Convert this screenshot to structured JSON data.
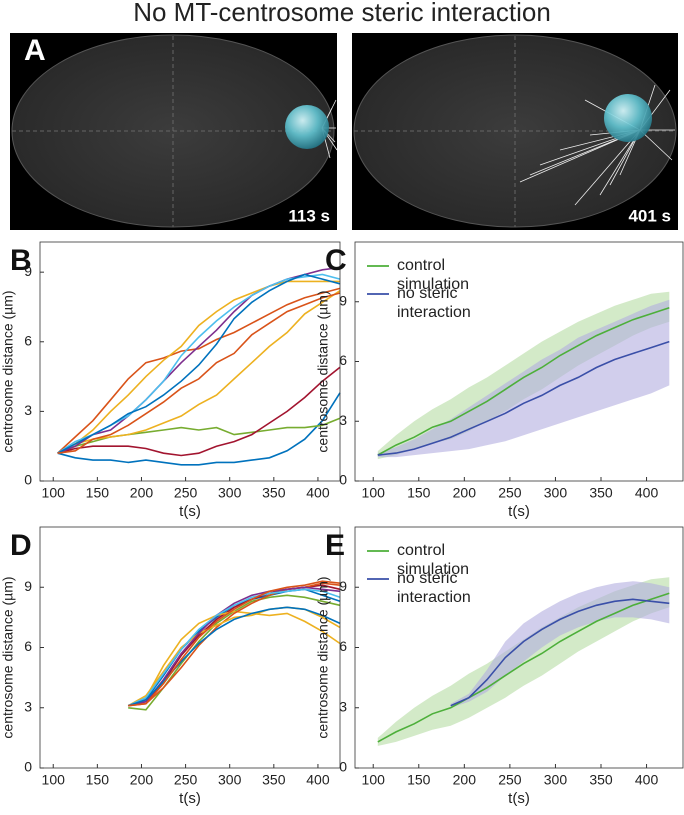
{
  "title": "No MT-centrosome steric interaction",
  "images": [
    {
      "panel_label": "A",
      "time_label": "113 s"
    },
    {
      "time_label": "401 s"
    }
  ],
  "chart_data": [
    {
      "type": "line",
      "panel_label": "B",
      "xlabel": "t(s)",
      "ylabel": "centrosome distance (µm)",
      "xlim": [
        85,
        425
      ],
      "ylim": [
        0,
        10.3
      ],
      "xticks": [
        100,
        150,
        200,
        250,
        300,
        350,
        400
      ],
      "yticks": [
        0,
        3,
        6,
        9
      ],
      "x": [
        105,
        125,
        145,
        165,
        185,
        205,
        225,
        245,
        265,
        285,
        305,
        325,
        345,
        365,
        385,
        405,
        425
      ],
      "series": [
        {
          "color": "#0072BD",
          "values": [
            1.2,
            1.0,
            0.9,
            0.9,
            0.8,
            0.9,
            0.8,
            0.7,
            0.7,
            0.8,
            0.8,
            0.9,
            1.0,
            1.3,
            1.8,
            2.6,
            3.8
          ]
        },
        {
          "color": "#77AC30",
          "values": [
            1.2,
            1.5,
            1.7,
            1.9,
            2.0,
            2.1,
            2.2,
            2.3,
            2.2,
            2.3,
            2.0,
            2.1,
            2.2,
            2.3,
            2.3,
            2.4,
            2.7
          ]
        },
        {
          "color": "#A2142F",
          "values": [
            1.2,
            1.4,
            1.5,
            1.5,
            1.5,
            1.4,
            1.2,
            1.1,
            1.2,
            1.5,
            1.7,
            2.0,
            2.5,
            3.0,
            3.6,
            4.3,
            4.9
          ]
        },
        {
          "color": "#EDB120",
          "values": [
            1.2,
            1.6,
            1.8,
            1.9,
            2.0,
            2.2,
            2.5,
            2.8,
            3.3,
            3.7,
            4.4,
            5.1,
            5.8,
            6.4,
            7.2,
            7.7,
            8.2
          ]
        },
        {
          "color": "#D95319",
          "values": [
            1.2,
            1.9,
            2.6,
            3.5,
            4.4,
            5.1,
            5.3,
            5.6,
            5.7,
            6.1,
            6.4,
            6.8,
            7.2,
            7.6,
            7.9,
            8.1,
            8.3
          ]
        },
        {
          "color": "#EDB120",
          "values": [
            1.2,
            1.6,
            2.2,
            3.0,
            3.7,
            4.5,
            5.2,
            5.8,
            6.7,
            7.3,
            7.8,
            8.1,
            8.4,
            8.6,
            8.6,
            8.6,
            8.6
          ]
        },
        {
          "color": "#7E2F8E",
          "values": [
            1.2,
            1.5,
            2.0,
            2.2,
            2.8,
            3.5,
            4.3,
            5.1,
            5.8,
            6.5,
            7.3,
            8.0,
            8.4,
            8.7,
            8.9,
            9.1,
            9.2
          ]
        },
        {
          "color": "#4DBEEE",
          "values": [
            1.2,
            1.7,
            2.0,
            2.4,
            2.8,
            3.5,
            4.3,
            5.4,
            6.2,
            6.9,
            7.5,
            8.0,
            8.4,
            8.7,
            8.8,
            8.9,
            8.7
          ]
        },
        {
          "color": "#0072BD",
          "values": [
            1.2,
            1.6,
            2.0,
            2.4,
            2.9,
            3.2,
            3.7,
            4.3,
            5.0,
            5.9,
            7.0,
            7.7,
            8.2,
            8.6,
            8.9,
            8.7,
            8.5
          ]
        },
        {
          "color": "#D95319",
          "values": [
            1.2,
            1.3,
            1.8,
            2.0,
            2.4,
            2.9,
            3.4,
            4.0,
            4.4,
            5.1,
            5.5,
            6.3,
            6.8,
            7.3,
            7.6,
            7.9,
            8.1
          ]
        }
      ]
    },
    {
      "type": "band-line",
      "panel_label": "C",
      "xlabel": "t(s)",
      "ylabel": "centrosome distance (µm)",
      "legend": "upper-left",
      "xlim": [
        80,
        440
      ],
      "ylim": [
        0,
        12
      ],
      "xticks": [
        100,
        150,
        200,
        250,
        300,
        350,
        400
      ],
      "yticks": [
        0,
        3,
        6,
        9
      ],
      "x": [
        105,
        125,
        145,
        165,
        185,
        205,
        225,
        245,
        265,
        285,
        305,
        325,
        345,
        365,
        385,
        405,
        425
      ],
      "series": [
        {
          "name": "control simulation",
          "color": "#4daf3a",
          "band_color": "#b6dca4",
          "values": [
            1.3,
            1.8,
            2.2,
            2.7,
            3.0,
            3.5,
            4.0,
            4.6,
            5.2,
            5.7,
            6.3,
            6.8,
            7.3,
            7.7,
            8.1,
            8.4,
            8.7
          ],
          "lower": [
            1.1,
            1.3,
            1.6,
            1.9,
            2.1,
            2.5,
            3.0,
            3.5,
            4.1,
            4.6,
            5.2,
            5.8,
            6.3,
            6.8,
            7.3,
            7.7,
            8.0
          ],
          "upper": [
            1.5,
            2.3,
            3.0,
            3.6,
            4.1,
            4.7,
            5.2,
            5.8,
            6.4,
            7.0,
            7.5,
            8.0,
            8.4,
            8.8,
            9.1,
            9.4,
            9.5
          ]
        },
        {
          "name": "no steric interaction",
          "color": "#3a4fa8",
          "band_color": "#b3aee0",
          "values": [
            1.3,
            1.4,
            1.6,
            1.9,
            2.2,
            2.6,
            3.0,
            3.4,
            3.9,
            4.3,
            4.8,
            5.2,
            5.7,
            6.1,
            6.4,
            6.7,
            7.0
          ],
          "lower": [
            1.2,
            1.2,
            1.3,
            1.4,
            1.5,
            1.6,
            1.8,
            2.0,
            2.3,
            2.6,
            2.9,
            3.2,
            3.5,
            3.8,
            4.1,
            4.4,
            4.8
          ],
          "upper": [
            1.4,
            1.7,
            2.1,
            2.6,
            3.1,
            3.7,
            4.3,
            4.9,
            5.5,
            6.1,
            6.6,
            7.2,
            7.6,
            8.0,
            8.4,
            8.8,
            9.1
          ]
        }
      ]
    },
    {
      "type": "line",
      "panel_label": "D",
      "xlabel": "t(s)",
      "ylabel": "centrosome distance (µm)",
      "xlim": [
        85,
        425
      ],
      "ylim": [
        0,
        12
      ],
      "xticks": [
        100,
        150,
        200,
        250,
        300,
        350,
        400
      ],
      "yticks": [
        0,
        3,
        6,
        9
      ],
      "x": [
        105,
        125,
        145,
        165,
        185,
        205,
        225,
        245,
        265,
        285,
        305,
        325,
        345,
        365,
        385,
        405,
        425
      ],
      "series": [
        {
          "color": "#0072BD",
          "values": [
            null,
            null,
            null,
            null,
            3.1,
            3.4,
            4.6,
            5.9,
            6.8,
            7.5,
            8.1,
            8.4,
            8.6,
            8.8,
            8.9,
            8.6,
            8.3
          ]
        },
        {
          "color": "#77AC30",
          "values": [
            null,
            null,
            null,
            null,
            3.0,
            2.9,
            4.0,
            5.2,
            6.3,
            7.2,
            7.8,
            8.3,
            8.5,
            8.6,
            8.5,
            8.3,
            8.1
          ]
        },
        {
          "color": "#A2142F",
          "values": [
            null,
            null,
            null,
            null,
            3.1,
            3.3,
            4.3,
            5.6,
            6.6,
            7.4,
            8.0,
            8.4,
            8.7,
            8.9,
            9.0,
            9.1,
            8.9
          ]
        },
        {
          "color": "#EDB120",
          "values": [
            null,
            null,
            null,
            null,
            3.1,
            3.5,
            5.1,
            6.4,
            7.2,
            7.6,
            7.8,
            7.7,
            7.6,
            7.7,
            7.3,
            6.8,
            6.2
          ]
        },
        {
          "color": "#D95319",
          "values": [
            null,
            null,
            null,
            null,
            3.1,
            3.2,
            4.0,
            5.0,
            6.1,
            7.0,
            7.7,
            8.2,
            8.6,
            8.9,
            9.0,
            9.2,
            9.1
          ]
        },
        {
          "color": "#EDB120",
          "values": [
            null,
            null,
            null,
            null,
            3.1,
            3.6,
            4.8,
            6.0,
            6.7,
            7.1,
            7.5,
            7.6,
            7.9,
            8.0,
            7.9,
            7.5,
            7.0
          ]
        },
        {
          "color": "#7E2F8E",
          "values": [
            null,
            null,
            null,
            null,
            3.1,
            3.3,
            4.4,
            5.7,
            6.7,
            7.6,
            8.2,
            8.6,
            8.8,
            8.9,
            9.0,
            8.9,
            8.8
          ]
        },
        {
          "color": "#4DBEEE",
          "values": [
            null,
            null,
            null,
            null,
            3.1,
            3.5,
            4.7,
            5.9,
            6.9,
            7.6,
            8.1,
            8.5,
            8.7,
            8.8,
            8.9,
            8.8,
            8.5
          ]
        },
        {
          "color": "#0072BD",
          "values": [
            null,
            null,
            null,
            null,
            3.1,
            3.4,
            4.3,
            5.3,
            6.2,
            6.9,
            7.4,
            7.7,
            7.9,
            8.0,
            7.9,
            7.6,
            7.2
          ]
        },
        {
          "color": "#D95319",
          "values": [
            null,
            null,
            null,
            null,
            3.1,
            3.2,
            4.2,
            5.4,
            6.5,
            7.3,
            7.9,
            8.4,
            8.8,
            9.0,
            9.1,
            9.3,
            9.2
          ]
        }
      ]
    },
    {
      "type": "band-line",
      "panel_label": "E",
      "xlabel": "t(s)",
      "ylabel": "centrosome distance (µm)",
      "legend": "upper-left",
      "xlim": [
        80,
        440
      ],
      "ylim": [
        0,
        12
      ],
      "xticks": [
        100,
        150,
        200,
        250,
        300,
        350,
        400
      ],
      "yticks": [
        0,
        3,
        6,
        9
      ],
      "x": [
        105,
        125,
        145,
        165,
        185,
        205,
        225,
        245,
        265,
        285,
        305,
        325,
        345,
        365,
        385,
        405,
        425
      ],
      "series": [
        {
          "name": "control simulation",
          "color": "#4daf3a",
          "band_color": "#b6dca4",
          "values": [
            1.3,
            1.8,
            2.2,
            2.7,
            3.0,
            3.5,
            4.0,
            4.6,
            5.2,
            5.7,
            6.3,
            6.8,
            7.3,
            7.7,
            8.1,
            8.4,
            8.7
          ],
          "lower": [
            1.1,
            1.3,
            1.6,
            1.9,
            2.1,
            2.5,
            3.0,
            3.5,
            4.1,
            4.6,
            5.2,
            5.8,
            6.3,
            6.8,
            7.3,
            7.7,
            8.0
          ],
          "upper": [
            1.5,
            2.3,
            3.0,
            3.6,
            4.1,
            4.7,
            5.2,
            5.8,
            6.4,
            7.0,
            7.5,
            8.0,
            8.4,
            8.8,
            9.1,
            9.4,
            9.5
          ]
        },
        {
          "name": "no steric interaction",
          "color": "#3a4fa8",
          "band_color": "#b3aee0",
          "values": [
            null,
            null,
            null,
            null,
            3.1,
            3.5,
            4.4,
            5.5,
            6.3,
            6.9,
            7.4,
            7.8,
            8.1,
            8.3,
            8.4,
            8.3,
            8.2
          ],
          "lower": [
            null,
            null,
            null,
            null,
            3.0,
            3.3,
            3.8,
            4.6,
            5.3,
            6.0,
            6.6,
            7.0,
            7.3,
            7.5,
            7.5,
            7.4,
            7.2
          ],
          "upper": [
            null,
            null,
            null,
            null,
            3.2,
            3.7,
            4.9,
            6.3,
            7.2,
            7.8,
            8.3,
            8.7,
            9.0,
            9.2,
            9.3,
            9.2,
            9.0
          ]
        }
      ]
    }
  ]
}
